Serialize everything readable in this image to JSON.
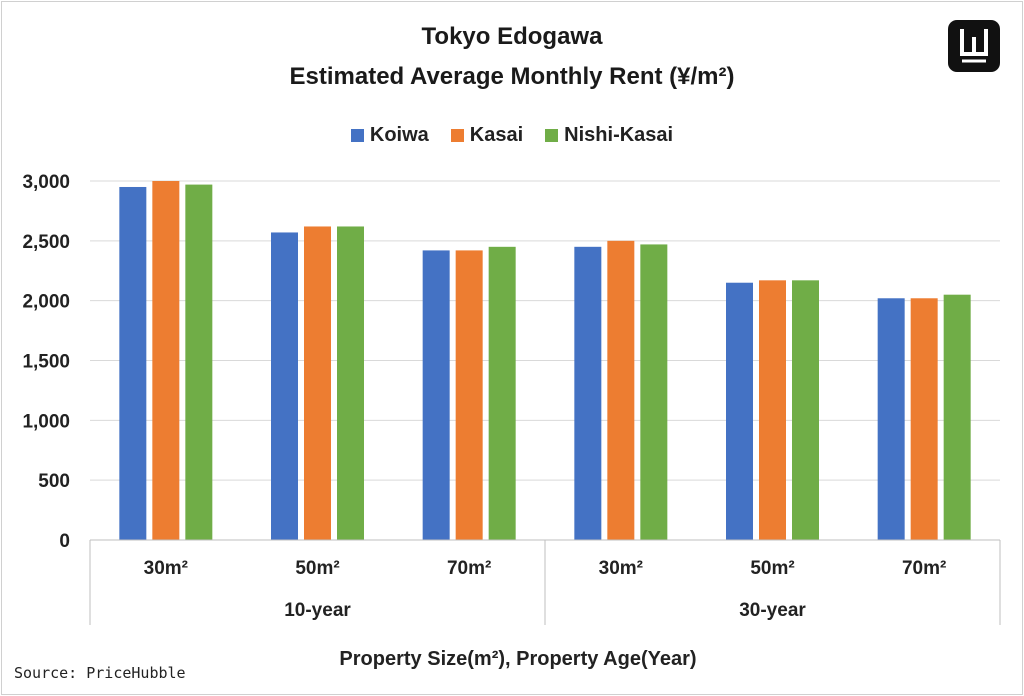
{
  "title": "Tokyo Edogawa",
  "subtitle": "Estimated Average Monthly Rent (¥/m²)",
  "source": "Source: PriceHubble",
  "logo_icon": "w-logo-icon",
  "colors": {
    "Koiwa": "#4472c4",
    "Kasai": "#ed7d31",
    "Nishi-Kasai": "#70ad47",
    "grid": "#d9d9d9",
    "axis": "#bfbfbf"
  },
  "legend": [
    "Koiwa",
    "Kasai",
    "Nishi-Kasai"
  ],
  "chart_data": {
    "type": "bar",
    "title": "Tokyo Edogawa",
    "subtitle": "Estimated Average Monthly Rent (¥/m²)",
    "xlabel": "Property Size(m²), Property Age(Year)",
    "ylabel": "",
    "ylim": [
      0,
      3000
    ],
    "yticks": [
      0,
      500,
      1000,
      1500,
      2000,
      2500,
      3000
    ],
    "ytick_labels": [
      "0",
      "500",
      "1,000",
      "1,500",
      "2,000",
      "2,500",
      "3,000"
    ],
    "grid": true,
    "legend_position": "top",
    "categories": [
      "30m²",
      "50m²",
      "70m²",
      "30m²",
      "50m²",
      "70m²"
    ],
    "groups": [
      {
        "label": "10-year",
        "span": 3
      },
      {
        "label": "30-year",
        "span": 3
      }
    ],
    "series": [
      {
        "name": "Koiwa",
        "values": [
          2950,
          2570,
          2420,
          2450,
          2150,
          2020
        ]
      },
      {
        "name": "Kasai",
        "values": [
          3000,
          2620,
          2420,
          2500,
          2170,
          2020
        ]
      },
      {
        "name": "Nishi-Kasai",
        "values": [
          2970,
          2620,
          2450,
          2470,
          2170,
          2050
        ]
      }
    ]
  }
}
